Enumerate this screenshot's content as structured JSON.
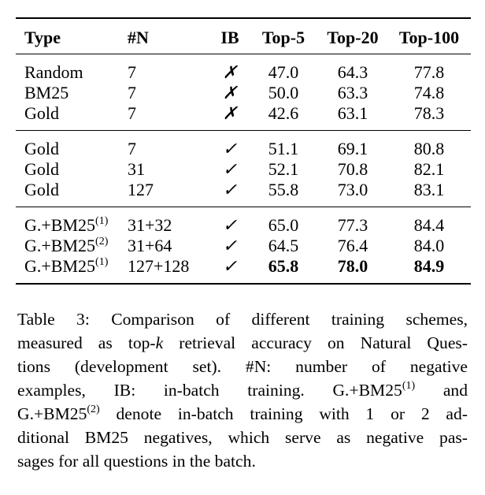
{
  "table": {
    "headers": {
      "type": "Type",
      "n": "#N",
      "ib": "IB",
      "top5": "Top-5",
      "top20": "Top-20",
      "top100": "Top-100"
    },
    "groups": [
      {
        "rows": [
          {
            "type": "Random",
            "n": "7",
            "ib": "✗",
            "top5": "47.0",
            "top20": "64.3",
            "top100": "77.8"
          },
          {
            "type": "BM25",
            "n": "7",
            "ib": "✗",
            "top5": "50.0",
            "top20": "63.3",
            "top100": "74.8"
          },
          {
            "type": "Gold",
            "n": "7",
            "ib": "✗",
            "top5": "42.6",
            "top20": "63.1",
            "top100": "78.3"
          }
        ]
      },
      {
        "rows": [
          {
            "type": "Gold",
            "n": "7",
            "ib": "✓",
            "top5": "51.1",
            "top20": "69.1",
            "top100": "80.8"
          },
          {
            "type": "Gold",
            "n": "31",
            "ib": "✓",
            "top5": "52.1",
            "top20": "70.8",
            "top100": "82.1"
          },
          {
            "type": "Gold",
            "n": "127",
            "ib": "✓",
            "top5": "55.8",
            "top20": "73.0",
            "top100": "83.1"
          }
        ]
      },
      {
        "rows": [
          {
            "type": "G.+BM25",
            "sup": "(1)",
            "n": "31+32",
            "ib": "✓",
            "top5": "65.0",
            "top20": "77.3",
            "top100": "84.4"
          },
          {
            "type": "G.+BM25",
            "sup": "(2)",
            "n": "31+64",
            "ib": "✓",
            "top5": "64.5",
            "top20": "76.4",
            "top100": "84.0"
          },
          {
            "type": "G.+BM25",
            "sup": "(1)",
            "n": "127+128",
            "ib": "✓",
            "top5": "65.8",
            "top20": "78.0",
            "top100": "84.9",
            "bold_scores": true
          }
        ]
      }
    ]
  },
  "caption": {
    "line1": "Table 3:  Comparison of different training schemes,",
    "line2a": "measured as top-",
    "line2k": "k",
    "line2b": " retrieval accuracy on Natural Ques-",
    "line3": "tions (development set).   #N: number of negative",
    "line4a": "examples, IB: in-batch training.   G.+BM25",
    "line4sup": "(1)",
    "line4b": " and",
    "line5a": "G.+BM25",
    "line5sup": "(2)",
    "line5b": " denote in-batch training with 1 or 2 ad-",
    "line6": "ditional BM25 negatives, which serve as negative pas-",
    "line7": "sages for all questions in the batch."
  }
}
